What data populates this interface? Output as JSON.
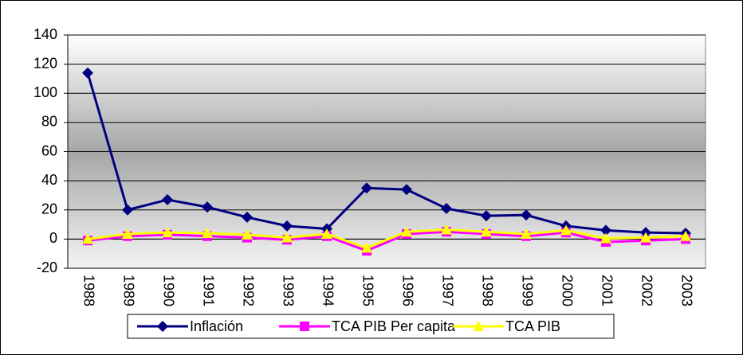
{
  "chart_data": {
    "type": "line",
    "categories": [
      "1988",
      "1989",
      "1990",
      "1991",
      "1992",
      "1993",
      "1994",
      "1995",
      "1996",
      "1997",
      "1998",
      "1999",
      "2000",
      "2001",
      "2002",
      "2003"
    ],
    "series": [
      {
        "name": "Inflación",
        "color": "#000080",
        "marker": "diamond",
        "values": [
          114,
          20,
          27,
          22,
          15,
          9,
          7,
          35,
          34,
          21,
          16,
          16.5,
          9,
          6,
          4.5,
          4
        ]
      },
      {
        "name": "TCA PIB Per capita",
        "color": "#ff00ff",
        "marker": "square",
        "values": [
          -1,
          2,
          3,
          2,
          1,
          -0.5,
          2,
          -8,
          3.5,
          5,
          3.5,
          2,
          4.5,
          -2,
          -1,
          0
        ]
      },
      {
        "name": "TCA PIB",
        "color": "#ffff00",
        "marker": "triangle",
        "values": [
          0,
          3.5,
          4.5,
          4,
          3,
          1,
          3.5,
          -6,
          5,
          6.5,
          5,
          3.5,
          6,
          0.5,
          1,
          2
        ]
      }
    ],
    "ylim": [
      -20,
      140
    ],
    "yticks": [
      -20,
      0,
      20,
      40,
      60,
      80,
      100,
      120,
      140
    ],
    "grid": true,
    "legend": "bottom"
  }
}
